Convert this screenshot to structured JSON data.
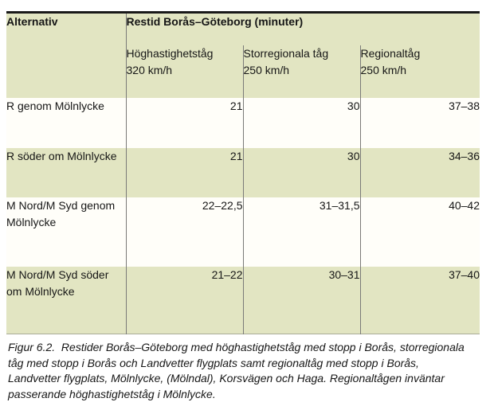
{
  "colors": {
    "table_green": "#e2e5c2",
    "row_white": "#fffef9",
    "grid_line": "#7a7a78",
    "top_border": "#191919",
    "bottom_border": "#a9ac99",
    "text": "#161616"
  },
  "table": {
    "corner_header": "Alternativ",
    "group_header": "Restid Borås–Göteborg (minuter)",
    "columns": [
      {
        "name": "Höghastighetståg",
        "speed": "320 km/h"
      },
      {
        "name": "Storregionala tåg",
        "speed": "250 km/h"
      },
      {
        "name": "Regionaltåg",
        "speed": "250 km/h"
      }
    ],
    "rows": [
      {
        "alternativ": "R genom Mölnlycke",
        "values": [
          "21",
          "30",
          "37–38"
        ]
      },
      {
        "alternativ": "R söder om Mölnlycke",
        "values": [
          "21",
          "30",
          "34–36"
        ]
      },
      {
        "alternativ": "M Nord/M Syd genom Mölnlycke",
        "values": [
          "22–22,5",
          "31–31,5",
          "40–42"
        ]
      },
      {
        "alternativ": "M Nord/M Syd söder om Mölnlycke",
        "values": [
          "21–22",
          "30–31",
          "37–40"
        ]
      }
    ]
  },
  "caption": {
    "figure_label": "Figur 6.2.",
    "lines": [
      "Figur 6.2.  Restider Borås–Göteborg med höghastighetståg med stopp i Borås, storregionala",
      "tåg med stopp i Borås och Landvetter flygplats samt regionaltåg med stopp i Borås,",
      "Landvetter flygplats, Mölnlycke, (Mölndal), Korsvägen och Haga. Regionaltågen inväntar",
      "passerande höghastighetståg i Mölnlycke."
    ]
  }
}
